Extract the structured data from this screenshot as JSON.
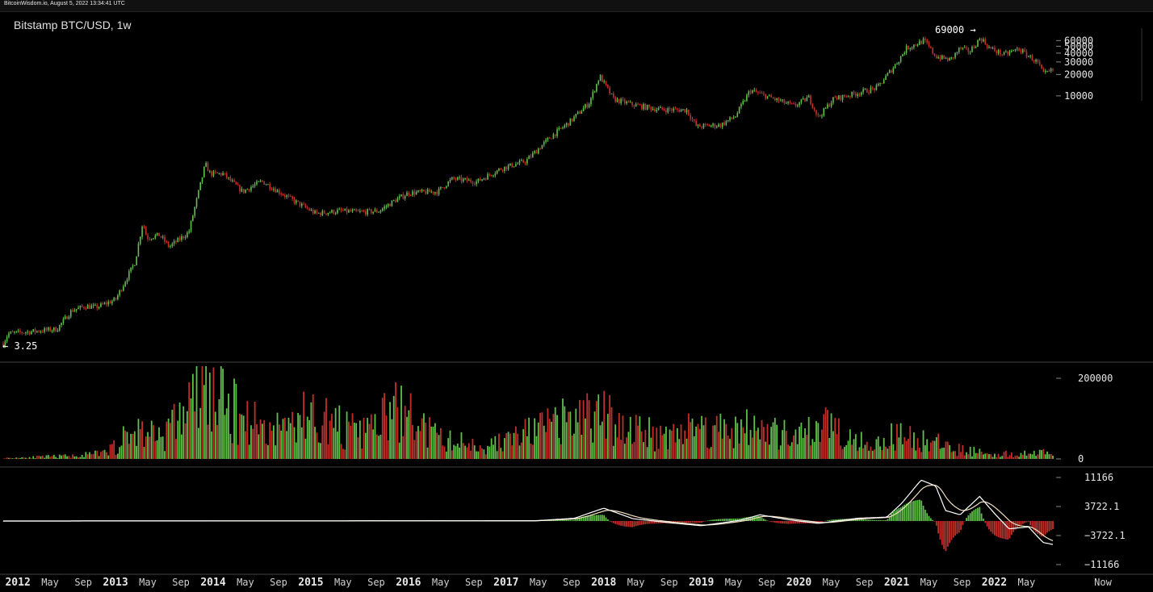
{
  "topbar": {
    "text": "BitcoinWisdom.io, August 5, 2022 13:34:41 UTC"
  },
  "colors": {
    "up": "#5fbf4a",
    "down": "#c0302b",
    "background": "#000000",
    "grid": "#3a3a3a",
    "macd_line": "#ffffff",
    "signal_line": "#f0e0c0"
  },
  "chart_data": {
    "title": "Bitstamp BTC/USD, 1w",
    "type": "candlestick",
    "price_axis": {
      "scale": "log",
      "ticks": [
        "60000",
        "50000",
        "40000",
        "30000",
        "20000",
        "10000"
      ]
    },
    "annotations": {
      "high": "69000 →",
      "low": "← 3.25"
    },
    "price_keypoints": [
      {
        "x": 2011.85,
        "y": 3.25
      },
      {
        "x": 2011.9,
        "y": 4.5
      },
      {
        "x": 2012.2,
        "y": 4.9
      },
      {
        "x": 2012.4,
        "y": 5.2
      },
      {
        "x": 2012.55,
        "y": 9.5
      },
      {
        "x": 2012.7,
        "y": 11
      },
      {
        "x": 2012.8,
        "y": 10.5
      },
      {
        "x": 2013.0,
        "y": 13.5
      },
      {
        "x": 2013.2,
        "y": 46
      },
      {
        "x": 2013.28,
        "y": 170
      },
      {
        "x": 2013.32,
        "y": 100
      },
      {
        "x": 2013.45,
        "y": 110
      },
      {
        "x": 2013.55,
        "y": 75
      },
      {
        "x": 2013.75,
        "y": 120
      },
      {
        "x": 2013.92,
        "y": 1100
      },
      {
        "x": 2013.97,
        "y": 800
      },
      {
        "x": 2014.1,
        "y": 800
      },
      {
        "x": 2014.3,
        "y": 450
      },
      {
        "x": 2014.5,
        "y": 630
      },
      {
        "x": 2014.8,
        "y": 350
      },
      {
        "x": 2015.05,
        "y": 220
      },
      {
        "x": 2015.3,
        "y": 240
      },
      {
        "x": 2015.5,
        "y": 230
      },
      {
        "x": 2015.7,
        "y": 240
      },
      {
        "x": 2015.85,
        "y": 330
      },
      {
        "x": 2016.0,
        "y": 430
      },
      {
        "x": 2016.3,
        "y": 450
      },
      {
        "x": 2016.45,
        "y": 680
      },
      {
        "x": 2016.7,
        "y": 620
      },
      {
        "x": 2016.95,
        "y": 950
      },
      {
        "x": 2017.2,
        "y": 1200
      },
      {
        "x": 2017.45,
        "y": 2600
      },
      {
        "x": 2017.65,
        "y": 4300
      },
      {
        "x": 2017.85,
        "y": 8000
      },
      {
        "x": 2017.96,
        "y": 19000
      },
      {
        "x": 2018.1,
        "y": 9000
      },
      {
        "x": 2018.3,
        "y": 7500
      },
      {
        "x": 2018.55,
        "y": 6500
      },
      {
        "x": 2018.85,
        "y": 6300
      },
      {
        "x": 2018.95,
        "y": 3700
      },
      {
        "x": 2019.2,
        "y": 3900
      },
      {
        "x": 2019.35,
        "y": 5200
      },
      {
        "x": 2019.5,
        "y": 12000
      },
      {
        "x": 2019.7,
        "y": 9500
      },
      {
        "x": 2019.95,
        "y": 7200
      },
      {
        "x": 2020.1,
        "y": 9500
      },
      {
        "x": 2020.2,
        "y": 5000
      },
      {
        "x": 2020.35,
        "y": 9000
      },
      {
        "x": 2020.6,
        "y": 11000
      },
      {
        "x": 2020.8,
        "y": 13000
      },
      {
        "x": 2021.0,
        "y": 29000
      },
      {
        "x": 2021.1,
        "y": 47000
      },
      {
        "x": 2021.28,
        "y": 60000
      },
      {
        "x": 2021.4,
        "y": 36000
      },
      {
        "x": 2021.55,
        "y": 32000
      },
      {
        "x": 2021.65,
        "y": 47000
      },
      {
        "x": 2021.75,
        "y": 42000
      },
      {
        "x": 2021.86,
        "y": 66000
      },
      {
        "x": 2021.95,
        "y": 47000
      },
      {
        "x": 2022.1,
        "y": 38000
      },
      {
        "x": 2022.25,
        "y": 46000
      },
      {
        "x": 2022.45,
        "y": 29000
      },
      {
        "x": 2022.5,
        "y": 20000
      },
      {
        "x": 2022.6,
        "y": 23000
      }
    ],
    "volume_axis": {
      "ticks": [
        "200000",
        "0"
      ]
    },
    "volume_keypoints": [
      {
        "x": 2011.85,
        "y": 2000
      },
      {
        "x": 2012.6,
        "y": 8000
      },
      {
        "x": 2012.9,
        "y": 15000
      },
      {
        "x": 2013.2,
        "y": 70000
      },
      {
        "x": 2013.5,
        "y": 60000
      },
      {
        "x": 2013.9,
        "y": 170000
      },
      {
        "x": 2014.2,
        "y": 120000
      },
      {
        "x": 2014.6,
        "y": 70000
      },
      {
        "x": 2015.0,
        "y": 110000
      },
      {
        "x": 2015.5,
        "y": 60000
      },
      {
        "x": 2015.9,
        "y": 120000
      },
      {
        "x": 2016.3,
        "y": 50000
      },
      {
        "x": 2016.8,
        "y": 30000
      },
      {
        "x": 2017.3,
        "y": 70000
      },
      {
        "x": 2017.9,
        "y": 110000
      },
      {
        "x": 2018.5,
        "y": 60000
      },
      {
        "x": 2018.9,
        "y": 75000
      },
      {
        "x": 2019.5,
        "y": 75000
      },
      {
        "x": 2020.0,
        "y": 50000
      },
      {
        "x": 2020.3,
        "y": 90000
      },
      {
        "x": 2020.7,
        "y": 40000
      },
      {
        "x": 2021.1,
        "y": 60000
      },
      {
        "x": 2021.6,
        "y": 25000
      },
      {
        "x": 2022.0,
        "y": 12000
      },
      {
        "x": 2022.6,
        "y": 15000
      }
    ],
    "macd_axis": {
      "ticks": [
        "11166",
        "3722.1",
        "−3722.1",
        "−11166"
      ]
    },
    "macd_keypoints": [
      {
        "x": 2011.85,
        "y": 0
      },
      {
        "x": 2017.3,
        "y": 80
      },
      {
        "x": 2017.7,
        "y": 700
      },
      {
        "x": 2018.0,
        "y": 3300
      },
      {
        "x": 2018.3,
        "y": 600
      },
      {
        "x": 2018.7,
        "y": -500
      },
      {
        "x": 2019.0,
        "y": -1200
      },
      {
        "x": 2019.4,
        "y": 200
      },
      {
        "x": 2019.6,
        "y": 1600
      },
      {
        "x": 2019.9,
        "y": 300
      },
      {
        "x": 2020.2,
        "y": -600
      },
      {
        "x": 2020.6,
        "y": 700
      },
      {
        "x": 2020.9,
        "y": 1000
      },
      {
        "x": 2021.05,
        "y": 4500
      },
      {
        "x": 2021.25,
        "y": 10500
      },
      {
        "x": 2021.4,
        "y": 9000
      },
      {
        "x": 2021.5,
        "y": 2700
      },
      {
        "x": 2021.65,
        "y": 1600
      },
      {
        "x": 2021.85,
        "y": 6300
      },
      {
        "x": 2022.0,
        "y": 2000
      },
      {
        "x": 2022.15,
        "y": -2000
      },
      {
        "x": 2022.35,
        "y": -1500
      },
      {
        "x": 2022.5,
        "y": -5500
      },
      {
        "x": 2022.6,
        "y": -6000
      }
    ],
    "x_axis": {
      "labels": [
        {
          "text": "2012",
          "x": 2012.0,
          "bold": true
        },
        {
          "text": "May",
          "x": 2012.33,
          "bold": false
        },
        {
          "text": "Sep",
          "x": 2012.67,
          "bold": false
        },
        {
          "text": "2013",
          "x": 2013.0,
          "bold": true
        },
        {
          "text": "May",
          "x": 2013.33,
          "bold": false
        },
        {
          "text": "Sep",
          "x": 2013.67,
          "bold": false
        },
        {
          "text": "2014",
          "x": 2014.0,
          "bold": true
        },
        {
          "text": "May",
          "x": 2014.33,
          "bold": false
        },
        {
          "text": "Sep",
          "x": 2014.67,
          "bold": false
        },
        {
          "text": "2015",
          "x": 2015.0,
          "bold": true
        },
        {
          "text": "May",
          "x": 2015.33,
          "bold": false
        },
        {
          "text": "Sep",
          "x": 2015.67,
          "bold": false
        },
        {
          "text": "2016",
          "x": 2016.0,
          "bold": true
        },
        {
          "text": "May",
          "x": 2016.33,
          "bold": false
        },
        {
          "text": "Sep",
          "x": 2016.67,
          "bold": false
        },
        {
          "text": "2017",
          "x": 2017.0,
          "bold": true
        },
        {
          "text": "May",
          "x": 2017.33,
          "bold": false
        },
        {
          "text": "Sep",
          "x": 2017.67,
          "bold": false
        },
        {
          "text": "2018",
          "x": 2018.0,
          "bold": true
        },
        {
          "text": "May",
          "x": 2018.33,
          "bold": false
        },
        {
          "text": "Sep",
          "x": 2018.67,
          "bold": false
        },
        {
          "text": "2019",
          "x": 2019.0,
          "bold": true
        },
        {
          "text": "May",
          "x": 2019.33,
          "bold": false
        },
        {
          "text": "Sep",
          "x": 2019.67,
          "bold": false
        },
        {
          "text": "2020",
          "x": 2020.0,
          "bold": true
        },
        {
          "text": "May",
          "x": 2020.33,
          "bold": false
        },
        {
          "text": "Sep",
          "x": 2020.67,
          "bold": false
        },
        {
          "text": "2021",
          "x": 2021.0,
          "bold": true
        },
        {
          "text": "May",
          "x": 2021.33,
          "bold": false
        },
        {
          "text": "Sep",
          "x": 2021.67,
          "bold": false
        },
        {
          "text": "2022",
          "x": 2022.0,
          "bold": true
        },
        {
          "text": "May",
          "x": 2022.33,
          "bold": false
        }
      ],
      "now_label": "Now"
    }
  }
}
